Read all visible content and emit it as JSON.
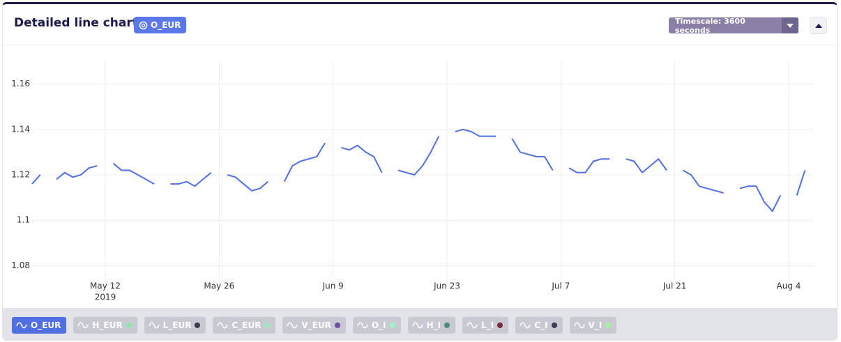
{
  "header": {
    "title": "Detailed line chart",
    "badge": "O_EUR",
    "timescale": "Timescale: 3600 seconds"
  },
  "chart_data": {
    "type": "line",
    "x": [
      "2019-05-03",
      "2019-05-04",
      "2019-05-05",
      "2019-05-06",
      "2019-05-07",
      "2019-05-08",
      "2019-05-09",
      "2019-05-10",
      "2019-05-11",
      "2019-05-12",
      "2019-05-13",
      "2019-05-14",
      "2019-05-15",
      "2019-05-16",
      "2019-05-17",
      "2019-05-18",
      "2019-05-19",
      "2019-05-20",
      "2019-05-21",
      "2019-05-22",
      "2019-05-23",
      "2019-05-24",
      "2019-05-25",
      "2019-05-26",
      "2019-05-27",
      "2019-05-28",
      "2019-05-29",
      "2019-05-30",
      "2019-05-31",
      "2019-06-01",
      "2019-06-02",
      "2019-06-03",
      "2019-06-04",
      "2019-06-05",
      "2019-06-06",
      "2019-06-07",
      "2019-06-08",
      "2019-06-09",
      "2019-06-10",
      "2019-06-11",
      "2019-06-12",
      "2019-06-13",
      "2019-06-14",
      "2019-06-15",
      "2019-06-16",
      "2019-06-17",
      "2019-06-18",
      "2019-06-19",
      "2019-06-20",
      "2019-06-21",
      "2019-06-22",
      "2019-06-23",
      "2019-06-24",
      "2019-06-25",
      "2019-06-26",
      "2019-06-27",
      "2019-06-28",
      "2019-06-29",
      "2019-06-30",
      "2019-07-01",
      "2019-07-02",
      "2019-07-03",
      "2019-07-04",
      "2019-07-05",
      "2019-07-06",
      "2019-07-07",
      "2019-07-08",
      "2019-07-09",
      "2019-07-10",
      "2019-07-11",
      "2019-07-12",
      "2019-07-13",
      "2019-07-14",
      "2019-07-15",
      "2019-07-16",
      "2019-07-17",
      "2019-07-18",
      "2019-07-19",
      "2019-07-20",
      "2019-07-21",
      "2019-07-22",
      "2019-07-23",
      "2019-07-24",
      "2019-07-25",
      "2019-07-26",
      "2019-07-27",
      "2019-07-28",
      "2019-07-29",
      "2019-07-30",
      "2019-07-31",
      "2019-08-01",
      "2019-08-02",
      "2019-08-03",
      "2019-08-04",
      "2019-08-05",
      "2019-08-06"
    ],
    "series": [
      {
        "name": "O_EUR",
        "color": "#4f6fe3",
        "values": [
          1.116,
          1.12,
          null,
          1.118,
          1.121,
          1.119,
          1.12,
          1.123,
          1.124,
          null,
          1.125,
          1.122,
          1.122,
          1.12,
          1.118,
          1.116,
          null,
          1.116,
          1.116,
          1.117,
          1.115,
          1.118,
          1.121,
          null,
          1.12,
          1.119,
          1.116,
          1.113,
          1.114,
          1.117,
          null,
          1.117,
          1.124,
          1.126,
          1.127,
          1.128,
          1.134,
          null,
          1.132,
          1.131,
          1.133,
          1.13,
          1.128,
          1.121,
          null,
          1.122,
          1.121,
          1.12,
          1.124,
          1.13,
          1.137,
          null,
          1.139,
          1.14,
          1.139,
          1.137,
          1.137,
          1.137,
          null,
          1.136,
          1.13,
          1.129,
          1.128,
          1.128,
          1.122,
          null,
          1.123,
          1.121,
          1.121,
          1.126,
          1.127,
          1.127,
          null,
          1.127,
          1.126,
          1.121,
          1.124,
          1.127,
          1.122,
          null,
          1.122,
          1.12,
          1.115,
          1.114,
          1.113,
          1.112,
          null,
          1.114,
          1.115,
          1.115,
          1.108,
          1.104,
          1.111,
          null,
          1.111,
          1.122
        ]
      }
    ],
    "xlim": [
      "2019-05-03",
      "2019-08-07"
    ],
    "xticks": [
      {
        "value": "2019-05-12",
        "label": "May 12"
      },
      {
        "value": "2019-05-26",
        "label": "May 26"
      },
      {
        "value": "2019-06-09",
        "label": "Jun 9"
      },
      {
        "value": "2019-06-23",
        "label": "Jun 23"
      },
      {
        "value": "2019-07-07",
        "label": "Jul 7"
      },
      {
        "value": "2019-07-21",
        "label": "Jul 21"
      },
      {
        "value": "2019-08-04",
        "label": "Aug 4"
      }
    ],
    "x_year_label": "2019",
    "ylim": [
      1.074,
      1.17
    ],
    "yticks": [
      1.08,
      1.1,
      1.12,
      1.14,
      1.16
    ],
    "grid": true
  },
  "chips": [
    {
      "label": "O_EUR",
      "active": true
    },
    {
      "label": "H_EUR",
      "dot": "#8ee6a6"
    },
    {
      "label": "L_EUR",
      "dot": "#3a3a4c"
    },
    {
      "label": "C_EUR",
      "dot": "#9de8bb"
    },
    {
      "label": "V_EUR",
      "dot": "#6b4fa3"
    },
    {
      "label": "O_I",
      "dot": "#a4f0c8"
    },
    {
      "label": "H_I",
      "dot": "#4a8d74"
    },
    {
      "label": "L_I",
      "dot": "#7d2c3c"
    },
    {
      "label": "C_I",
      "dot": "#3b3b52"
    },
    {
      "label": "V_I",
      "dot": "#a2f0a0"
    }
  ]
}
